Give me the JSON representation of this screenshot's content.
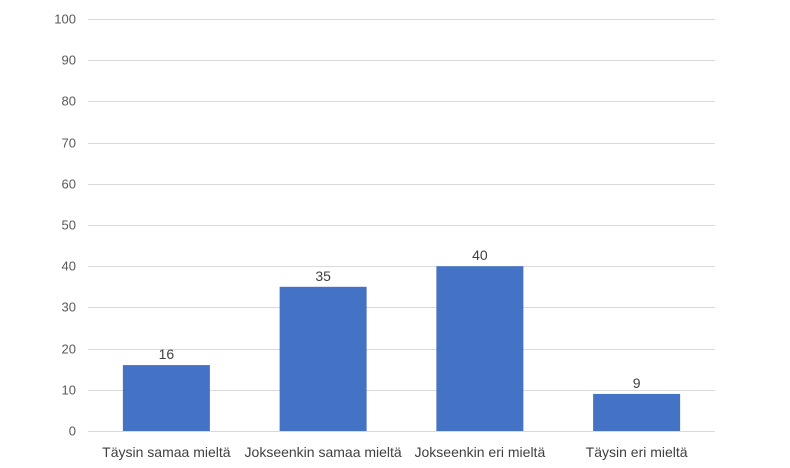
{
  "chart_data": {
    "type": "bar",
    "categories": [
      "Täysin samaa mieltä",
      "Jokseenkin samaa mieltä",
      "Jokseenkin eri mieltä",
      "Täysin eri mieltä"
    ],
    "values": [
      16,
      35,
      40,
      9
    ],
    "title": "",
    "xlabel": "",
    "ylabel": "",
    "ylim": [
      0,
      100
    ],
    "yticks": [
      0,
      10,
      20,
      30,
      40,
      50,
      60,
      70,
      80,
      90,
      100
    ],
    "grid": true,
    "legend": "none",
    "data_labels": true,
    "colors": {
      "bar": "#4472c4",
      "grid": "#d9d9d9",
      "axis_text": "#595959"
    }
  }
}
